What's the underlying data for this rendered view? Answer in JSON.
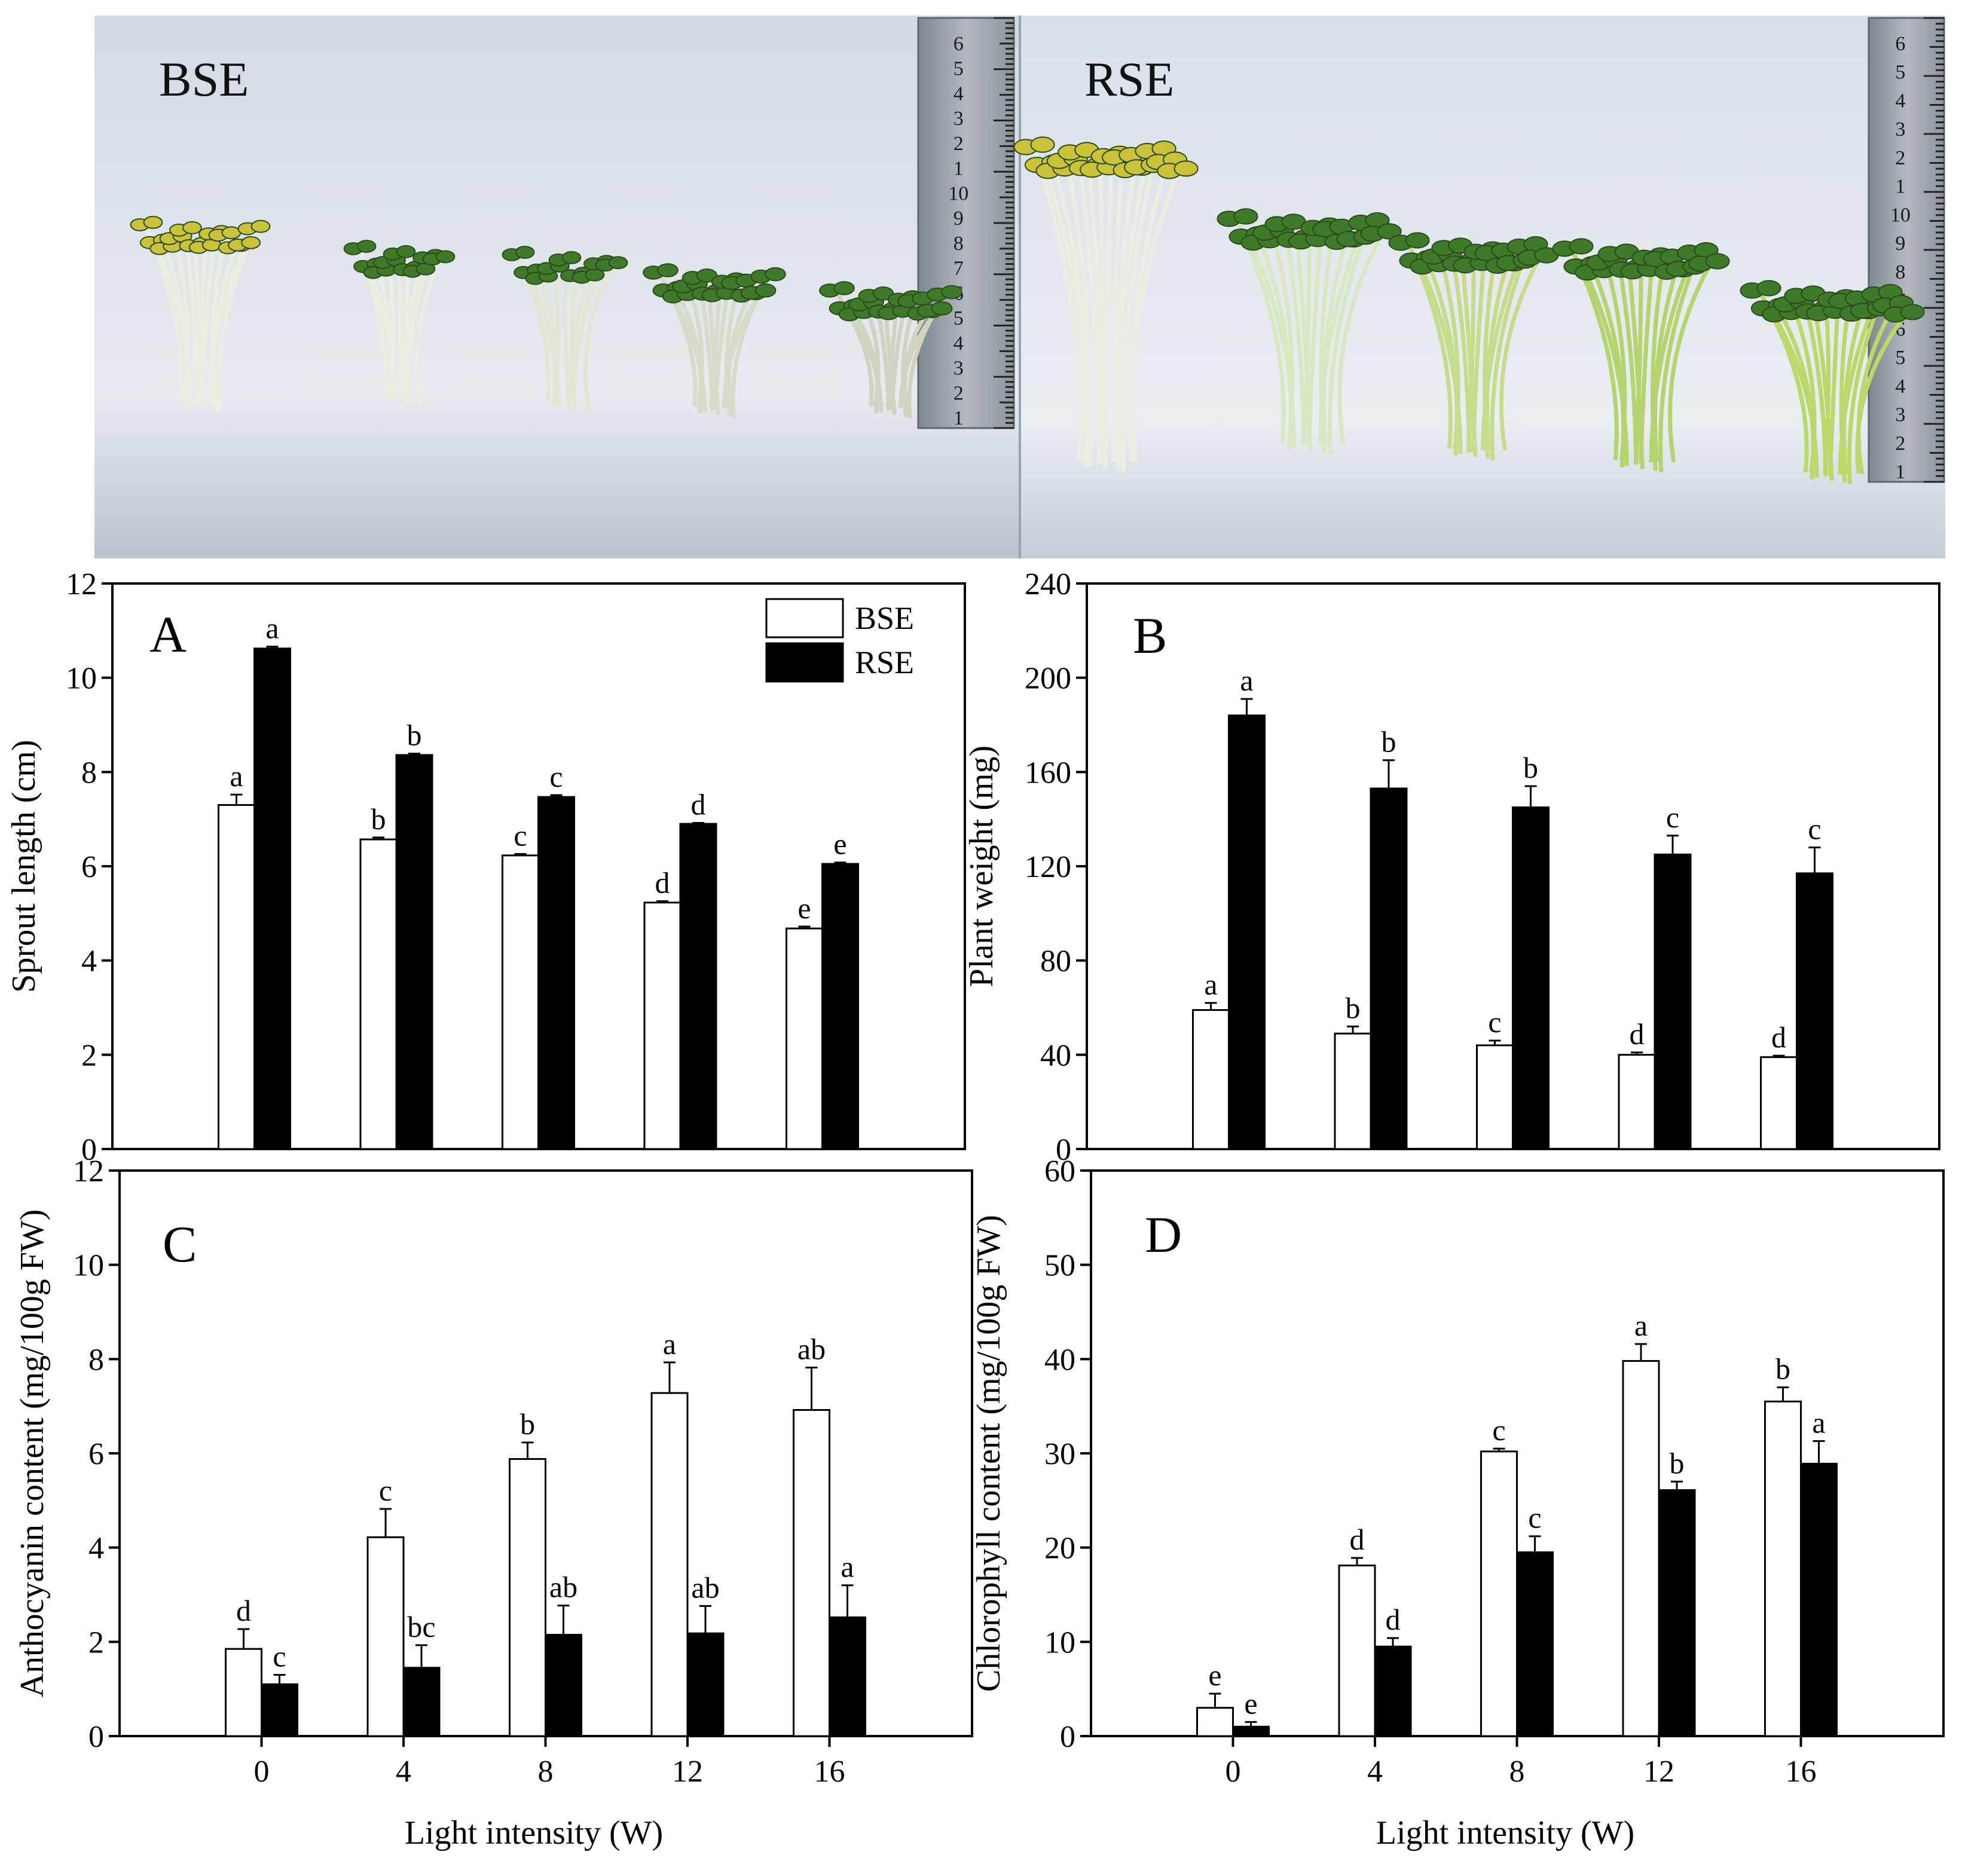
{
  "photo": {
    "left_label": "BSE",
    "right_label": "RSE",
    "colors": {
      "background": "#dde3ea",
      "sprout_stem": "#e8efe0",
      "leaf_yellow": "#c9c23a",
      "leaf_green": "#3f7a2a",
      "rsE_stem": "#c7dc8a",
      "ruler": "#9aa1a8"
    },
    "ruler_left_digits": [
      "6",
      "5",
      "4",
      "3",
      "2",
      "1",
      "10",
      "9",
      "8",
      "7",
      "6",
      "5",
      "4",
      "3",
      "2",
      "1"
    ],
    "ruler_right_digits": [
      "6",
      "5",
      "4",
      "3",
      "2",
      "1",
      "10",
      "9",
      "8",
      "7",
      "6",
      "5",
      "4",
      "3",
      "2",
      "1"
    ]
  },
  "chart_data": [
    {
      "type": "bar",
      "panel": "A",
      "ylabel": "Sprout length (cm)",
      "xlabel": "",
      "ylim": [
        0,
        12
      ],
      "yticks": [
        "0",
        "2",
        "4",
        "6",
        "8",
        "10",
        "12"
      ],
      "categories": [
        "0",
        "4",
        "8",
        "12",
        "16"
      ],
      "show_xticks": false,
      "legend": {
        "placement": "top-right",
        "entries": [
          "BSE",
          "RSE"
        ]
      },
      "series": [
        {
          "name": "BSE",
          "color": "#ffffff",
          "values": [
            7.3,
            6.57,
            6.23,
            5.23,
            4.68
          ],
          "errors": [
            0.22,
            0.04,
            0.03,
            0.03,
            0.04
          ],
          "letters": [
            "a",
            "b",
            "c",
            "d",
            "e"
          ]
        },
        {
          "name": "RSE",
          "color": "#000000",
          "values": [
            10.62,
            8.36,
            7.47,
            6.9,
            6.05
          ],
          "errors": [
            0.04,
            0.03,
            0.04,
            0.02,
            0.03
          ],
          "letters": [
            "a",
            "b",
            "c",
            "d",
            "e"
          ]
        }
      ]
    },
    {
      "type": "bar",
      "panel": "B",
      "ylabel": "Plant weight (mg)",
      "xlabel": "",
      "ylim": [
        0,
        240
      ],
      "yticks": [
        "0",
        "40",
        "80",
        "120",
        "160",
        "200",
        "240"
      ],
      "categories": [
        "0",
        "4",
        "8",
        "12",
        "16"
      ],
      "show_xticks": false,
      "series": [
        {
          "name": "BSE",
          "color": "#ffffff",
          "values": [
            59,
            49,
            44,
            40,
            39
          ],
          "errors": [
            3,
            3,
            2,
            1,
            0.6
          ],
          "letters": [
            "a",
            "b",
            "c",
            "d",
            "d"
          ]
        },
        {
          "name": "RSE",
          "color": "#000000",
          "values": [
            184,
            153,
            145,
            125,
            117
          ],
          "errors": [
            7,
            12,
            9,
            8,
            11
          ],
          "letters": [
            "a",
            "b",
            "b",
            "c",
            "c"
          ]
        }
      ]
    },
    {
      "type": "bar",
      "panel": "C",
      "ylabel": "Anthocyanin content (mg/100g FW)",
      "xlabel": "Light intensity (W)",
      "ylim": [
        0,
        12
      ],
      "yticks": [
        "0",
        "2",
        "4",
        "6",
        "8",
        "10",
        "12"
      ],
      "categories": [
        "0",
        "4",
        "8",
        "12",
        "16"
      ],
      "show_xticks": true,
      "series": [
        {
          "name": "BSE",
          "color": "#ffffff",
          "values": [
            1.85,
            4.22,
            5.88,
            7.28,
            6.92
          ],
          "errors": [
            0.42,
            0.6,
            0.35,
            0.65,
            0.9
          ],
          "letters": [
            "d",
            "c",
            "b",
            "a",
            "ab"
          ]
        },
        {
          "name": "RSE",
          "color": "#000000",
          "values": [
            1.1,
            1.45,
            2.15,
            2.18,
            2.52
          ],
          "errors": [
            0.2,
            0.48,
            0.62,
            0.58,
            0.68
          ],
          "letters": [
            "c",
            "bc",
            "ab",
            "ab",
            "a"
          ]
        }
      ]
    },
    {
      "type": "bar",
      "panel": "D",
      "ylabel": "Chlorophyll content (mg/100g FW)",
      "xlabel": "Light intensity (W)",
      "ylim": [
        0,
        60
      ],
      "yticks": [
        "0",
        "10",
        "20",
        "30",
        "40",
        "50",
        "60"
      ],
      "categories": [
        "0",
        "4",
        "8",
        "12",
        "16"
      ],
      "show_xticks": true,
      "series": [
        {
          "name": "BSE",
          "color": "#ffffff",
          "values": [
            3.0,
            18.1,
            30.2,
            39.8,
            35.5
          ],
          "errors": [
            1.5,
            0.8,
            0.3,
            1.8,
            1.5
          ],
          "letters": [
            "e",
            "d",
            "c",
            "a",
            "b"
          ]
        },
        {
          "name": "RSE",
          "color": "#000000",
          "values": [
            1.0,
            9.5,
            19.5,
            26.1,
            28.9
          ],
          "errors": [
            0.5,
            0.9,
            1.7,
            0.9,
            2.4
          ],
          "letters": [
            "e",
            "d",
            "c",
            "b",
            "a"
          ]
        }
      ]
    }
  ]
}
